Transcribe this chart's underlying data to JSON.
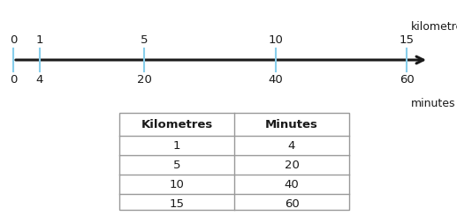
{
  "km_positions": [
    0,
    1,
    5,
    10,
    15
  ],
  "min_labels": [
    0,
    4,
    20,
    40,
    60
  ],
  "tick_color": "#87CEEB",
  "line_color": "#1a1a1a",
  "text_color": "#1a1a1a",
  "label_km": "kilometres",
  "label_min": "minutes",
  "table_headers": [
    "Kilometres",
    "Minutes"
  ],
  "table_data": [
    [
      1,
      4
    ],
    [
      5,
      20
    ],
    [
      10,
      40
    ],
    [
      15,
      60
    ]
  ],
  "fig_w": 5.17,
  "fig_h": 2.45,
  "dpi": 100
}
